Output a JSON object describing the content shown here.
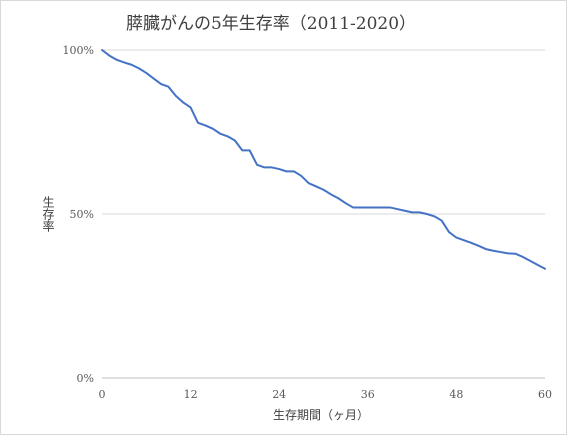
{
  "chart_data": {
    "type": "line",
    "title": "膵臓がんの5年生存率（2011-2020）",
    "xlabel": "生存期間（ヶ月）",
    "ylabel": "生存率",
    "xlim": [
      0,
      60
    ],
    "ylim": [
      0,
      100
    ],
    "x_ticks": [
      0,
      12,
      24,
      36,
      48,
      60
    ],
    "y_ticks": [
      0,
      50,
      100
    ],
    "y_tick_labels": [
      "0%",
      "50%",
      "100%"
    ],
    "grid": "horizontal",
    "legend": "none",
    "series": [
      {
        "color": "#4472c4",
        "points": [
          [
            0,
            100
          ],
          [
            1,
            98.3
          ],
          [
            2,
            97
          ],
          [
            3,
            96.2
          ],
          [
            4,
            95.5
          ],
          [
            5,
            94.4
          ],
          [
            6,
            93
          ],
          [
            7,
            91.3
          ],
          [
            8,
            89.6
          ],
          [
            9,
            88.8
          ],
          [
            10,
            86
          ],
          [
            11,
            84
          ],
          [
            12,
            82.5
          ],
          [
            13,
            77.8
          ],
          [
            14,
            77
          ],
          [
            15,
            76
          ],
          [
            16,
            74.5
          ],
          [
            17,
            73.7
          ],
          [
            18,
            72.4
          ],
          [
            19,
            69.4
          ],
          [
            20,
            69.4
          ],
          [
            21,
            65
          ],
          [
            22,
            64.2
          ],
          [
            23,
            64.2
          ],
          [
            24,
            63.7
          ],
          [
            25,
            63
          ],
          [
            26,
            63
          ],
          [
            27,
            61.6
          ],
          [
            28,
            59.4
          ],
          [
            29,
            58.4
          ],
          [
            30,
            57.4
          ],
          [
            31,
            56
          ],
          [
            32,
            54.8
          ],
          [
            33,
            53.3
          ],
          [
            34,
            52
          ],
          [
            36,
            52
          ],
          [
            38,
            52
          ],
          [
            39,
            52
          ],
          [
            40,
            51.5
          ],
          [
            41,
            51
          ],
          [
            42,
            50.5
          ],
          [
            43,
            50.5
          ],
          [
            44,
            50
          ],
          [
            45,
            49.3
          ],
          [
            46,
            48
          ],
          [
            47,
            44.5
          ],
          [
            48,
            42.8
          ],
          [
            49,
            42
          ],
          [
            50,
            41.2
          ],
          [
            51,
            40.3
          ],
          [
            52,
            39.3
          ],
          [
            53,
            38.8
          ],
          [
            54,
            38.4
          ],
          [
            55,
            38
          ],
          [
            56,
            37.9
          ],
          [
            57,
            36.9
          ],
          [
            58,
            35.7
          ],
          [
            59,
            34.5
          ],
          [
            60,
            33.3
          ]
        ]
      }
    ]
  }
}
